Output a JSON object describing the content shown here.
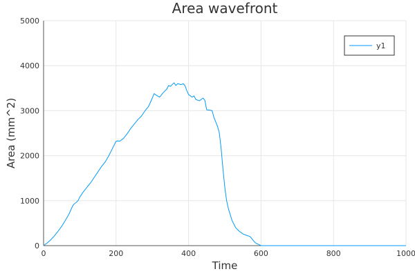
{
  "chart_data": {
    "type": "line",
    "title": "Area wavefront",
    "xlabel": "Time",
    "ylabel": "Area (mm^2)",
    "xlim": [
      0,
      1000
    ],
    "ylim": [
      0,
      5000
    ],
    "x_ticks": [
      "0",
      "200",
      "400",
      "600",
      "800",
      "1000"
    ],
    "y_ticks": [
      "0",
      "1000",
      "2000",
      "3000",
      "4000",
      "5000"
    ],
    "grid": true,
    "legend_position": "top-right",
    "series": [
      {
        "name": "y1",
        "color": "#009af9",
        "x": [
          0,
          10,
          20,
          30,
          40,
          50,
          60,
          70,
          80,
          85,
          90,
          95,
          100,
          105,
          110,
          120,
          130,
          140,
          150,
          160,
          170,
          180,
          190,
          200,
          205,
          210,
          220,
          230,
          240,
          250,
          260,
          270,
          280,
          290,
          300,
          305,
          310,
          320,
          330,
          340,
          345,
          350,
          355,
          360,
          365,
          370,
          380,
          385,
          390,
          395,
          400,
          410,
          415,
          420,
          430,
          440,
          445,
          450,
          460,
          465,
          470,
          475,
          480,
          485,
          490,
          495,
          500,
          505,
          510,
          520,
          530,
          540,
          550,
          560,
          570,
          580,
          585,
          590,
          595,
          600,
          620,
          700,
          800,
          900,
          1000
        ],
        "y": [
          0,
          60,
          130,
          220,
          320,
          430,
          560,
          700,
          880,
          930,
          960,
          1000,
          1080,
          1140,
          1200,
          1300,
          1400,
          1520,
          1640,
          1760,
          1860,
          2000,
          2160,
          2320,
          2330,
          2320,
          2380,
          2480,
          2600,
          2700,
          2800,
          2880,
          3000,
          3100,
          3280,
          3380,
          3350,
          3300,
          3400,
          3480,
          3560,
          3540,
          3580,
          3620,
          3560,
          3600,
          3580,
          3600,
          3560,
          3450,
          3360,
          3300,
          3330,
          3250,
          3220,
          3280,
          3230,
          3020,
          3010,
          3000,
          2850,
          2750,
          2650,
          2500,
          2150,
          1700,
          1300,
          1000,
          820,
          560,
          400,
          320,
          260,
          230,
          200,
          100,
          60,
          40,
          20,
          0,
          0,
          0,
          0,
          0,
          0
        ]
      }
    ]
  }
}
